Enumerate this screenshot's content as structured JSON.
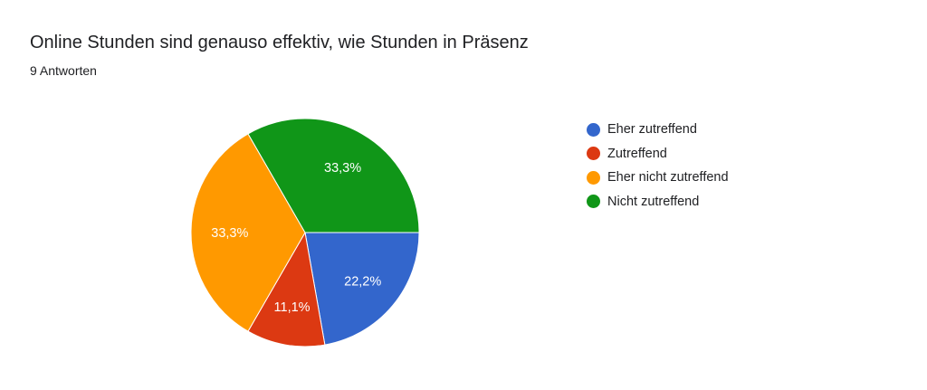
{
  "title": "Online Stunden sind genauso effektiv, wie Stunden in Präsenz",
  "subtitle": "9 Antworten",
  "chart_data": {
    "type": "pie",
    "categories": [
      "Eher zutreffend",
      "Zutreffend",
      "Eher nicht zutreffend",
      "Nicht zutreffend"
    ],
    "values": [
      2,
      1,
      3,
      3
    ],
    "labels": [
      "22,2%",
      "11,1%",
      "33,3%",
      "33,3%"
    ],
    "colors": [
      "#3366cc",
      "#dc3912",
      "#ff9900",
      "#109618"
    ],
    "legend_position": "right"
  }
}
